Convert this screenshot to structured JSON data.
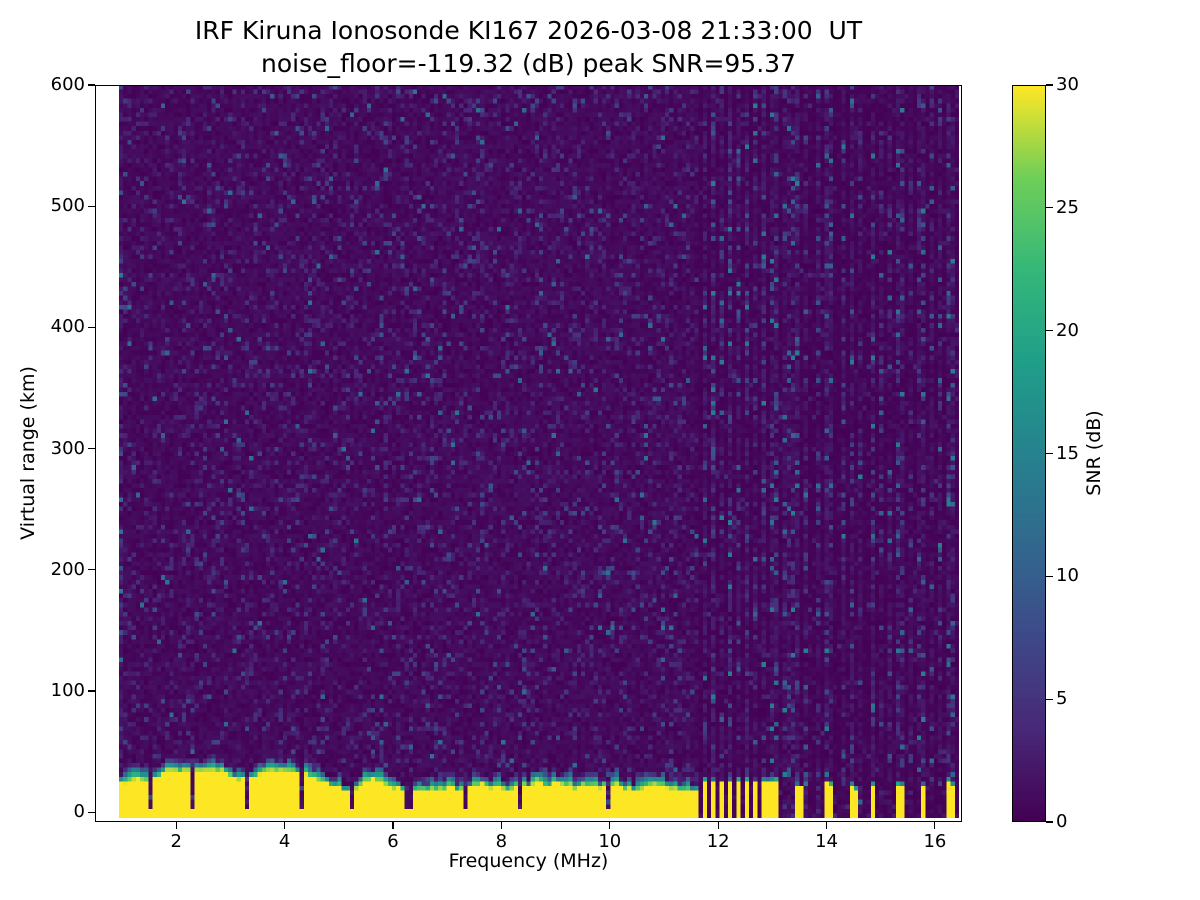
{
  "figure": {
    "background": "#ffffff"
  },
  "chart_data": {
    "type": "heatmap",
    "title": "IRF Kiruna Ionosonde KI167 2026-03-08 21:33:00  UT",
    "subtitle": "noise_floor=-119.32 (dB) peak SNR=95.37",
    "xlabel": "Frequency (MHz)",
    "ylabel": "Virtual range (km)",
    "colorbar_label": "SNR (dB)",
    "colormap": "viridis",
    "xlim": [
      0.5,
      16.5
    ],
    "ylim": [
      -8,
      600
    ],
    "clim": [
      0,
      30
    ],
    "x_ticks": [
      2,
      4,
      6,
      8,
      10,
      12,
      14,
      16
    ],
    "y_ticks": [
      0,
      100,
      200,
      300,
      400,
      500,
      600
    ],
    "colorbar_ticks": [
      0,
      5,
      10,
      15,
      20,
      25,
      30
    ],
    "viridis_stops": [
      "#440154",
      "#482878",
      "#3e4989",
      "#31688e",
      "#26828e",
      "#1f9e89",
      "#35b779",
      "#6ece58",
      "#fde725"
    ],
    "data_extent": {
      "f_min": 0.95,
      "f_max": 16.45,
      "r_min": -5,
      "r_max": 600
    },
    "grid": {
      "cols": 200,
      "rows": 160
    },
    "noise": {
      "probs": [
        0.79,
        0.94,
        0.99
      ],
      "base_max_db": 1.5,
      "mid_max_db": 4,
      "speckle_max_db": 8,
      "bright_max_db": 13,
      "right_scale": 0.35,
      "seed": 1337
    },
    "ground_echo": {
      "f_min": 0.95,
      "f_max": 11.65,
      "top_km_mean": 26,
      "top_km_min": 17,
      "top_km_max": 34,
      "fade_km_min": 5,
      "fade_km_max": 14,
      "saturated_db": 30
    },
    "band_notches": [
      1.55,
      2.3,
      3.3,
      4.3,
      5.25,
      6.3,
      7.35,
      8.35,
      10.0
    ],
    "notch_half_width": 0.05,
    "stripe_half_width": 0.04,
    "rfi_stripes": [
      {
        "f": 1.0,
        "i": 2.2
      },
      {
        "f": 11.76,
        "i": 1.9
      },
      {
        "f": 11.92,
        "i": 2.4
      },
      {
        "f": 12.08,
        "i": 1.6
      },
      {
        "f": 12.24,
        "i": 2.2
      },
      {
        "f": 12.4,
        "i": 1.7
      },
      {
        "f": 12.56,
        "i": 2.3
      },
      {
        "f": 12.72,
        "i": 1.6
      },
      {
        "f": 12.88,
        "i": 2.1
      },
      {
        "f": 13.04,
        "i": 1.7
      },
      {
        "f": 13.2,
        "i": 1.5
      },
      {
        "f": 13.35,
        "i": 1.5
      },
      {
        "f": 13.48,
        "i": 1.9
      },
      {
        "f": 13.65,
        "i": 1.4
      },
      {
        "f": 13.82,
        "i": 1.5
      },
      {
        "f": 13.98,
        "i": 2.0
      },
      {
        "f": 14.12,
        "i": 1.6
      },
      {
        "f": 14.3,
        "i": 1.4
      },
      {
        "f": 14.48,
        "i": 1.8
      },
      {
        "f": 14.65,
        "i": 1.4
      },
      {
        "f": 14.88,
        "i": 1.8
      },
      {
        "f": 15.05,
        "i": 1.4
      },
      {
        "f": 15.2,
        "i": 1.5
      },
      {
        "f": 15.3,
        "i": 1.8
      },
      {
        "f": 15.42,
        "i": 1.6
      },
      {
        "f": 15.58,
        "i": 1.4
      },
      {
        "f": 15.7,
        "i": 1.5
      },
      {
        "f": 15.8,
        "i": 1.8
      },
      {
        "f": 15.95,
        "i": 1.4
      },
      {
        "f": 16.1,
        "i": 1.5
      },
      {
        "f": 16.24,
        "i": 1.7
      },
      {
        "f": 16.34,
        "i": 1.6
      }
    ],
    "bottom_bars": [
      {
        "f": 11.76,
        "w": 0.09,
        "h": 26
      },
      {
        "f": 11.92,
        "w": 0.09,
        "h": 27
      },
      {
        "f": 12.08,
        "w": 0.09,
        "h": 24
      },
      {
        "f": 12.24,
        "w": 0.09,
        "h": 26
      },
      {
        "f": 12.4,
        "w": 0.09,
        "h": 25
      },
      {
        "f": 12.56,
        "w": 0.09,
        "h": 27
      },
      {
        "f": 12.72,
        "w": 0.09,
        "h": 24
      },
      {
        "f": 12.88,
        "w": 0.09,
        "h": 26
      },
      {
        "f": 13.04,
        "w": 0.09,
        "h": 25
      },
      {
        "f": 13.48,
        "w": 0.08,
        "h": 22
      },
      {
        "f": 13.58,
        "w": 0.08,
        "h": 20
      },
      {
        "f": 13.98,
        "w": 0.08,
        "h": 24
      },
      {
        "f": 14.12,
        "w": 0.08,
        "h": 21
      },
      {
        "f": 14.48,
        "w": 0.08,
        "h": 23
      },
      {
        "f": 14.58,
        "w": 0.08,
        "h": 19
      },
      {
        "f": 14.88,
        "w": 0.08,
        "h": 22
      },
      {
        "f": 15.3,
        "w": 0.08,
        "h": 21
      },
      {
        "f": 15.42,
        "w": 0.08,
        "h": 23
      },
      {
        "f": 15.8,
        "w": 0.08,
        "h": 22
      },
      {
        "f": 16.24,
        "w": 0.08,
        "h": 25
      },
      {
        "f": 16.34,
        "w": 0.08,
        "h": 23
      }
    ]
  }
}
